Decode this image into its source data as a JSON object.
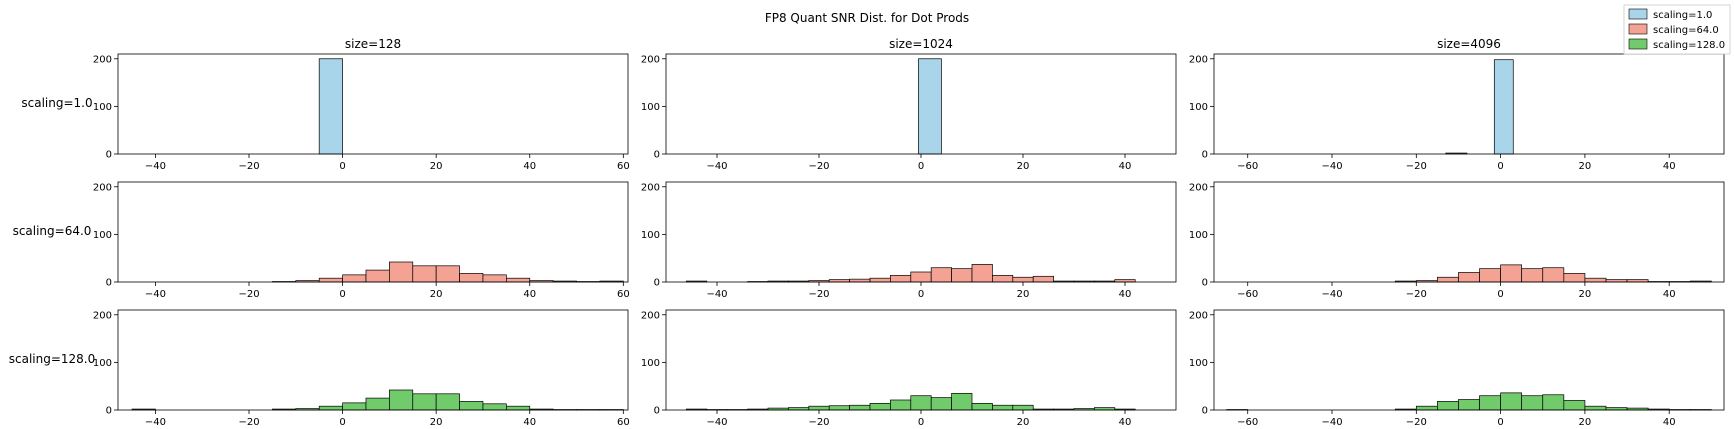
{
  "title": "FP8 Quant SNR Dist. for Dot Prods",
  "column_titles": [
    "size=128",
    "size=1024",
    "size=4096"
  ],
  "row_labels": [
    "scaling=1.0",
    "scaling=64.0",
    "scaling=128.0"
  ],
  "legend": {
    "placement": "top-right",
    "entries": [
      {
        "label": "scaling=1.0",
        "color": "#a8d5ea"
      },
      {
        "label": "scaling=64.0",
        "color": "#f4a293"
      },
      {
        "label": "scaling=128.0",
        "color": "#72cb6b"
      }
    ]
  },
  "chart_data": [
    {
      "type": "bar",
      "title": "size=128",
      "row_label": "scaling=1.0",
      "color": "#a8d5ea",
      "xlim": [
        -48,
        61
      ],
      "ylim": [
        0,
        210
      ],
      "xticks": [
        -40,
        -20,
        0,
        20,
        40,
        60
      ],
      "yticks": [
        0,
        100,
        200
      ],
      "bins": [
        [
          -5,
          0,
          200
        ]
      ]
    },
    {
      "type": "bar",
      "title": "size=1024",
      "row_label": "scaling=1.0",
      "color": "#a8d5ea",
      "xlim": [
        -50,
        50
      ],
      "ylim": [
        0,
        210
      ],
      "xticks": [
        -40,
        -20,
        0,
        20,
        40
      ],
      "yticks": [
        0,
        100,
        200
      ],
      "bins": [
        [
          -0.5,
          4,
          200
        ]
      ]
    },
    {
      "type": "bar",
      "title": "size=4096",
      "row_label": "scaling=1.0",
      "color": "#a8d5ea",
      "xlim": [
        -68,
        53
      ],
      "ylim": [
        0,
        210
      ],
      "xticks": [
        -60,
        -40,
        -20,
        0,
        20,
        40
      ],
      "yticks": [
        0,
        100,
        200
      ],
      "bins": [
        [
          -13,
          -8,
          2
        ],
        [
          -1.5,
          3,
          198
        ]
      ]
    },
    {
      "type": "bar",
      "title": "",
      "row_label": "scaling=64.0",
      "color": "#f4a293",
      "xlim": [
        -48,
        61
      ],
      "ylim": [
        0,
        210
      ],
      "xticks": [
        -40,
        -20,
        0,
        20,
        40,
        60
      ],
      "yticks": [
        0,
        100,
        200
      ],
      "bins": [
        [
          -15,
          -10,
          1
        ],
        [
          -10,
          -5,
          3
        ],
        [
          -5,
          0,
          8
        ],
        [
          0,
          5,
          15
        ],
        [
          5,
          10,
          25
        ],
        [
          10,
          15,
          42
        ],
        [
          15,
          20,
          34
        ],
        [
          20,
          25,
          34
        ],
        [
          25,
          30,
          18
        ],
        [
          30,
          35,
          15
        ],
        [
          35,
          40,
          8
        ],
        [
          40,
          45,
          3
        ],
        [
          45,
          50,
          2
        ],
        [
          50,
          55,
          1
        ],
        [
          55,
          60,
          2
        ]
      ]
    },
    {
      "type": "bar",
      "title": "",
      "row_label": "scaling=64.0",
      "color": "#f4a293",
      "xlim": [
        -50,
        50
      ],
      "ylim": [
        0,
        210
      ],
      "xticks": [
        -40,
        -20,
        0,
        20,
        40
      ],
      "yticks": [
        0,
        100,
        200
      ],
      "bins": [
        [
          -46,
          -42,
          2
        ],
        [
          -34,
          -30,
          1
        ],
        [
          -30,
          -26,
          2
        ],
        [
          -26,
          -22,
          2
        ],
        [
          -22,
          -18,
          3
        ],
        [
          -18,
          -14,
          5
        ],
        [
          -14,
          -10,
          6
        ],
        [
          -10,
          -6,
          8
        ],
        [
          -6,
          -2,
          14
        ],
        [
          -2,
          2,
          21
        ],
        [
          2,
          6,
          30
        ],
        [
          6,
          10,
          28
        ],
        [
          10,
          14,
          37
        ],
        [
          14,
          18,
          14
        ],
        [
          18,
          22,
          10
        ],
        [
          22,
          26,
          12
        ],
        [
          26,
          30,
          2
        ],
        [
          30,
          34,
          2
        ],
        [
          34,
          38,
          2
        ],
        [
          38,
          42,
          5
        ]
      ]
    },
    {
      "type": "bar",
      "title": "",
      "row_label": "scaling=64.0",
      "color": "#f4a293",
      "xlim": [
        -68,
        53
      ],
      "ylim": [
        0,
        210
      ],
      "xticks": [
        -60,
        -40,
        -20,
        0,
        20,
        40
      ],
      "yticks": [
        0,
        100,
        200
      ],
      "bins": [
        [
          -25,
          -20,
          2
        ],
        [
          -20,
          -15,
          3
        ],
        [
          -15,
          -10,
          10
        ],
        [
          -10,
          -5,
          20
        ],
        [
          -5,
          0,
          28
        ],
        [
          0,
          5,
          36
        ],
        [
          5,
          10,
          28
        ],
        [
          10,
          15,
          30
        ],
        [
          15,
          20,
          18
        ],
        [
          20,
          25,
          8
        ],
        [
          25,
          30,
          5
        ],
        [
          30,
          35,
          5
        ],
        [
          35,
          40,
          1
        ],
        [
          40,
          45,
          1
        ],
        [
          45,
          50,
          2
        ]
      ]
    },
    {
      "type": "bar",
      "title": "",
      "row_label": "scaling=128.0",
      "color": "#72cb6b",
      "xlim": [
        -48,
        61
      ],
      "ylim": [
        0,
        210
      ],
      "xticks": [
        -40,
        -20,
        0,
        20,
        40,
        60
      ],
      "yticks": [
        0,
        100,
        200
      ],
      "bins": [
        [
          -45,
          -40,
          2
        ],
        [
          -15,
          -10,
          2
        ],
        [
          -10,
          -5,
          3
        ],
        [
          -5,
          0,
          8
        ],
        [
          0,
          5,
          15
        ],
        [
          5,
          10,
          25
        ],
        [
          10,
          15,
          42
        ],
        [
          15,
          20,
          34
        ],
        [
          20,
          25,
          34
        ],
        [
          25,
          30,
          18
        ],
        [
          30,
          35,
          13
        ],
        [
          35,
          40,
          8
        ],
        [
          40,
          45,
          2
        ],
        [
          45,
          50,
          1
        ],
        [
          50,
          55,
          1
        ],
        [
          55,
          60,
          1
        ]
      ]
    },
    {
      "type": "bar",
      "title": "",
      "row_label": "scaling=128.0",
      "color": "#72cb6b",
      "xlim": [
        -50,
        50
      ],
      "ylim": [
        0,
        210
      ],
      "xticks": [
        -40,
        -20,
        0,
        20,
        40
      ],
      "yticks": [
        0,
        100,
        200
      ],
      "bins": [
        [
          -46,
          -42,
          2
        ],
        [
          -42,
          -38,
          1
        ],
        [
          -38,
          -34,
          1
        ],
        [
          -34,
          -30,
          2
        ],
        [
          -30,
          -26,
          4
        ],
        [
          -26,
          -22,
          5
        ],
        [
          -22,
          -18,
          8
        ],
        [
          -18,
          -14,
          9
        ],
        [
          -14,
          -10,
          10
        ],
        [
          -10,
          -6,
          14
        ],
        [
          -6,
          -2,
          21
        ],
        [
          -2,
          2,
          30
        ],
        [
          2,
          6,
          26
        ],
        [
          6,
          10,
          35
        ],
        [
          10,
          14,
          14
        ],
        [
          14,
          18,
          10
        ],
        [
          18,
          22,
          10
        ],
        [
          22,
          26,
          2
        ],
        [
          26,
          30,
          2
        ],
        [
          30,
          34,
          3
        ],
        [
          34,
          38,
          5
        ],
        [
          38,
          42,
          2
        ]
      ]
    },
    {
      "type": "bar",
      "title": "",
      "row_label": "scaling=128.0",
      "color": "#72cb6b",
      "xlim": [
        -68,
        53
      ],
      "ylim": [
        0,
        210
      ],
      "xticks": [
        -60,
        -40,
        -20,
        0,
        20,
        40
      ],
      "yticks": [
        0,
        100,
        200
      ],
      "bins": [
        [
          -65,
          -60,
          1
        ],
        [
          -25,
          -20,
          2
        ],
        [
          -20,
          -15,
          8
        ],
        [
          -15,
          -10,
          18
        ],
        [
          -10,
          -5,
          22
        ],
        [
          -5,
          0,
          30
        ],
        [
          0,
          5,
          36
        ],
        [
          5,
          10,
          30
        ],
        [
          10,
          15,
          32
        ],
        [
          15,
          20,
          20
        ],
        [
          20,
          25,
          8
        ],
        [
          25,
          30,
          5
        ],
        [
          30,
          35,
          4
        ],
        [
          35,
          40,
          2
        ],
        [
          40,
          45,
          1
        ],
        [
          45,
          50,
          1
        ]
      ]
    }
  ]
}
